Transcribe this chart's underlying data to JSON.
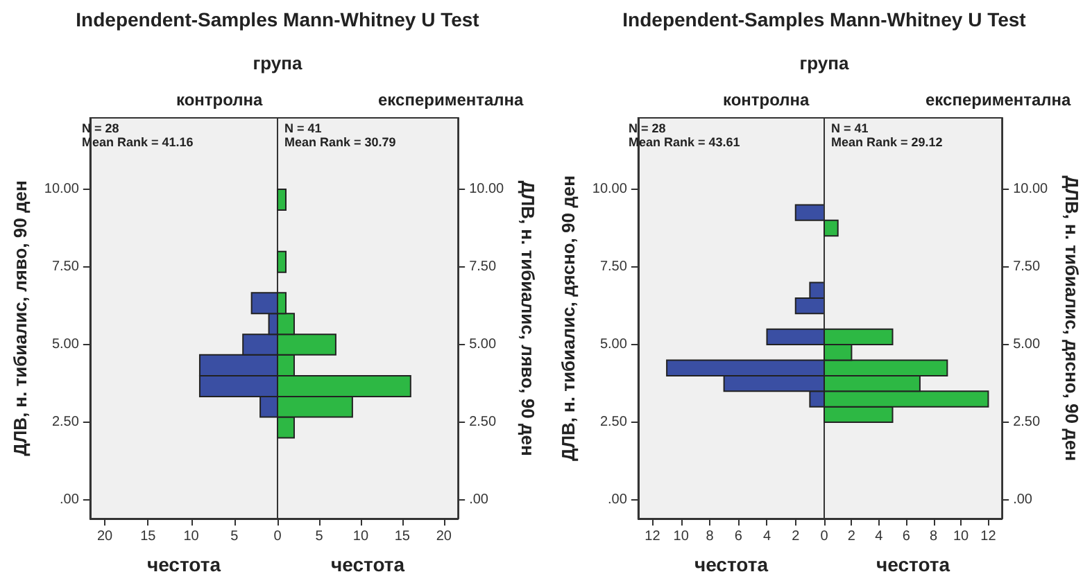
{
  "chart_data": [
    {
      "type": "histogram",
      "orientation": "horizontal",
      "title": "Independent-Samples Mann-Whitney U Test",
      "subtitle": "група",
      "xlabel": "честота",
      "ylabel": "ДЛВ, н. тибиалис, ляво, 90 ден",
      "bins": [
        2,
        2.67,
        3.33,
        4,
        4.67,
        5.33,
        6,
        6.67,
        7.33,
        8,
        8.67,
        9.33,
        10
      ],
      "series": [
        {
          "name": "контролна",
          "color": "#3a4fa3",
          "values": [
            0,
            2,
            9,
            9,
            4,
            1,
            3,
            0,
            0,
            0,
            0,
            0
          ]
        }
      ],
      "xlim": [
        21.7,
        0
      ],
      "xticks": [
        20,
        15,
        10,
        5,
        0
      ],
      "ylim": [
        -0.6,
        12.3
      ],
      "yticks": [
        {
          "value": 0,
          "label": ".00"
        },
        {
          "value": 2.5,
          "label": "2.50"
        },
        {
          "value": 5,
          "label": "5.00"
        },
        {
          "value": 7.5,
          "label": "7.50"
        },
        {
          "value": 10,
          "label": "10.00"
        }
      ],
      "annotations": [
        "N = 28",
        "Mean Rank = 41.16"
      ]
    },
    {
      "type": "histogram",
      "orientation": "horizontal",
      "xlabel": "честота",
      "ylabel": "ДЛВ, н. тибиалис, ляво, 90 ден",
      "bins": [
        2,
        2.67,
        3.33,
        4,
        4.67,
        5.33,
        6,
        6.67,
        7.33,
        8,
        8.67,
        9.33,
        10
      ],
      "series": [
        {
          "name": "експериментална",
          "color": "#2db844",
          "values": [
            2,
            9,
            16,
            2,
            7,
            2,
            1,
            0,
            1,
            0,
            0,
            1
          ]
        }
      ],
      "xlim": [
        0,
        21.7
      ],
      "xticks": [
        5,
        10,
        15,
        20
      ],
      "ylim": [
        -0.6,
        12.3
      ],
      "yticks": [
        {
          "value": 0,
          "label": ".00"
        },
        {
          "value": 2.5,
          "label": "2.50"
        },
        {
          "value": 5,
          "label": "5.00"
        },
        {
          "value": 7.5,
          "label": "7.50"
        },
        {
          "value": 10,
          "label": "10.00"
        }
      ],
      "annotations": [
        "N = 41",
        "Mean Rank = 30.79"
      ]
    },
    {
      "type": "histogram",
      "orientation": "horizontal",
      "title": "Independent-Samples Mann-Whitney U Test",
      "subtitle": "група",
      "xlabel": "честота",
      "ylabel": "ДЛВ, н. тибиалис, дясно, 90 ден",
      "bins": [
        2.5,
        3,
        3.5,
        4,
        4.5,
        5,
        5.5,
        6,
        6.5,
        7,
        7.5,
        8,
        8.5,
        9,
        9.5
      ],
      "series": [
        {
          "name": "контролна",
          "color": "#3a4fa3",
          "values": [
            0,
            1,
            7,
            11,
            0,
            4,
            0,
            2,
            1,
            0,
            0,
            0,
            0,
            2
          ]
        }
      ],
      "xlim": [
        13,
        0
      ],
      "xticks": [
        12,
        10,
        8,
        6,
        4,
        2,
        0
      ],
      "ylim": [
        -0.6,
        12.3
      ],
      "yticks": [
        {
          "value": 0,
          "label": ".00"
        },
        {
          "value": 2.5,
          "label": "2.50"
        },
        {
          "value": 5,
          "label": "5.00"
        },
        {
          "value": 7.5,
          "label": "7.50"
        },
        {
          "value": 10,
          "label": "10.00"
        }
      ],
      "annotations": [
        "N = 28",
        "Mean Rank = 43.61"
      ]
    },
    {
      "type": "histogram",
      "orientation": "horizontal",
      "xlabel": "честота",
      "ylabel": "ДЛВ, н. тибиалис, дясно, 90 ден",
      "bins": [
        2.5,
        3,
        3.5,
        4,
        4.5,
        5,
        5.5,
        6,
        6.5,
        7,
        7.5,
        8,
        8.5,
        9,
        9.5
      ],
      "series": [
        {
          "name": "експериментална",
          "color": "#2db844",
          "values": [
            5,
            12,
            7,
            9,
            2,
            5,
            0,
            0,
            0,
            0,
            0,
            0,
            1,
            0
          ]
        }
      ],
      "xlim": [
        0,
        13
      ],
      "xticks": [
        2,
        4,
        6,
        8,
        10,
        12
      ],
      "ylim": [
        -0.6,
        12.3
      ],
      "yticks": [
        {
          "value": 0,
          "label": ".00"
        },
        {
          "value": 2.5,
          "label": "2.50"
        },
        {
          "value": 5,
          "label": "5.00"
        },
        {
          "value": 7.5,
          "label": "7.50"
        },
        {
          "value": 10,
          "label": "10.00"
        }
      ],
      "annotations": [
        "N = 41",
        "Mean Rank = 29.12"
      ]
    }
  ]
}
